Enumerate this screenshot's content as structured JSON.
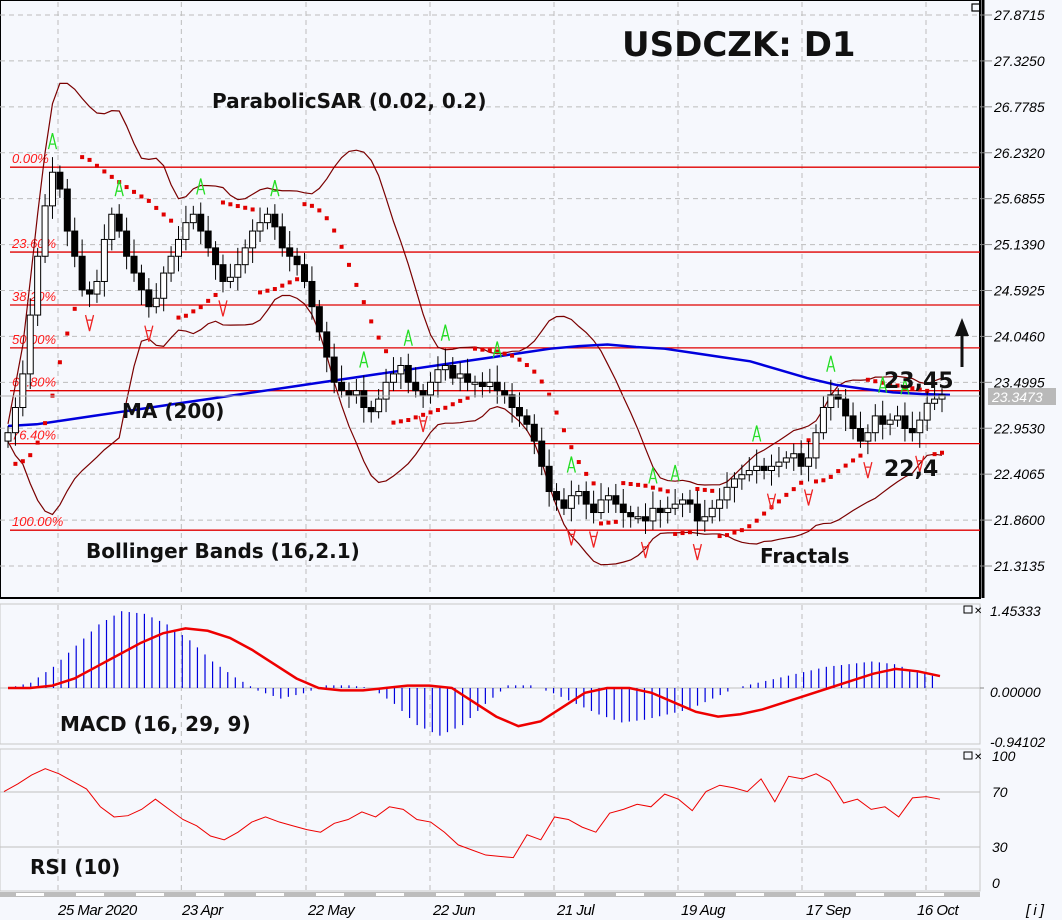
{
  "title": "USDCZK: D1",
  "chart_data": {
    "type": "candlestick",
    "title": "USDCZK: D1",
    "symbol": "USDCZK",
    "timeframe": "D1",
    "price_axis": {
      "ticks": [
        "27.8715",
        "27.3250",
        "26.7785",
        "26.2320",
        "25.6855",
        "25.1390",
        "24.5925",
        "24.0460",
        "23.4995",
        "22.9530",
        "22.4065",
        "21.8600",
        "21.3135"
      ],
      "range": [
        21.3135,
        27.8715
      ],
      "current_price": "23.3473"
    },
    "x_axis": {
      "ticks": [
        "25 Mar 2020",
        "23 Apr",
        "22 May",
        "22 Jun",
        "21 Jul",
        "19 Aug",
        "17 Sep",
        "16 Oct"
      ]
    },
    "fibonacci_levels": [
      {
        "label": "0.00%",
        "price": 26.06
      },
      {
        "label": "23.60%",
        "price": 25.05
      },
      {
        "label": "38.20%",
        "price": 24.42
      },
      {
        "label": "50.00%",
        "price": 23.91
      },
      {
        "label": "61.80%",
        "price": 23.4
      },
      {
        "label": "76.40%",
        "price": 22.77
      },
      {
        "label": "100.00%",
        "price": 21.74
      }
    ],
    "annotations": {
      "parabolic_sar": "ParabolicSAR (0.02, 0.2)",
      "ma": "MA (200)",
      "bollinger": "Bollinger Bands (16,2.1)",
      "fractals": "Fractals",
      "resistance": "23,45",
      "support": "22,4",
      "arrow": "up"
    },
    "close_series": [
      22.9,
      23.2,
      23.6,
      24.3,
      25.0,
      25.6,
      26.0,
      25.8,
      25.3,
      25.0,
      24.6,
      24.55,
      24.7,
      25.2,
      25.5,
      25.3,
      25.0,
      24.8,
      24.6,
      24.4,
      24.5,
      24.8,
      25.0,
      25.2,
      25.4,
      25.5,
      25.3,
      25.1,
      24.9,
      24.7,
      24.75,
      24.9,
      25.1,
      25.3,
      25.4,
      25.5,
      25.35,
      25.1,
      25.0,
      24.9,
      24.7,
      24.4,
      24.1,
      23.8,
      23.5,
      23.4,
      23.35,
      23.4,
      23.2,
      23.15,
      23.3,
      23.5,
      23.6,
      23.7,
      23.5,
      23.4,
      23.35,
      23.5,
      23.65,
      23.7,
      23.55,
      23.6,
      23.5,
      23.5,
      23.45,
      23.5,
      23.4,
      23.35,
      23.2,
      23.1,
      23.0,
      22.8,
      22.5,
      22.2,
      22.1,
      22.0,
      22.15,
      22.2,
      22.05,
      21.95,
      22.1,
      22.15,
      22.05,
      21.95,
      21.9,
      21.9,
      21.85,
      22.0,
      21.95,
      22.0,
      22.05,
      22.1,
      22.05,
      21.85,
      21.9,
      22.0,
      22.1,
      22.25,
      22.35,
      22.4,
      22.45,
      22.5,
      22.45,
      22.5,
      22.55,
      22.6,
      22.65,
      22.5,
      22.6,
      22.9,
      23.2,
      23.35,
      23.3,
      23.1,
      22.95,
      22.8,
      22.9,
      23.1,
      23.0,
      23.05,
      23.1,
      22.95,
      22.9,
      23.05,
      23.25,
      23.3,
      23.35
    ],
    "ma200_series": [
      22.98,
      23.0,
      23.05,
      23.1,
      23.15,
      23.2,
      23.25,
      23.3,
      23.35,
      23.4,
      23.45,
      23.5,
      23.55,
      23.6,
      23.65,
      23.7,
      23.75,
      23.8,
      23.85,
      23.9,
      23.93,
      23.95,
      23.92,
      23.9,
      23.85,
      23.8,
      23.75,
      23.65,
      23.55,
      23.47,
      23.42,
      23.38,
      23.36,
      23.35
    ],
    "macd": {
      "label": "MACD (16, 29, 9)",
      "ticks": [
        "1.45333",
        "0.00000",
        "-0.94102"
      ],
      "signal": [
        0,
        0,
        0.05,
        0.2,
        0.45,
        0.7,
        0.95,
        1.15,
        1.25,
        1.2,
        1.05,
        0.8,
        0.5,
        0.2,
        0,
        -0.05,
        -0.05,
        0.0,
        0.05,
        0.05,
        0.0,
        -0.3,
        -0.6,
        -0.8,
        -0.7,
        -0.4,
        -0.1,
        0.0,
        0.0,
        -0.1,
        -0.3,
        -0.5,
        -0.6,
        -0.55,
        -0.45,
        -0.3,
        -0.15,
        0.0,
        0.15,
        0.3,
        0.4,
        0.35,
        0.25
      ],
      "histogram": [
        0,
        0.1,
        0.4,
        0.8,
        1.2,
        1.45,
        1.4,
        1.2,
        0.9,
        0.5,
        0.2,
        -0.05,
        -0.2,
        -0.1,
        0.05,
        0.05,
        0.0,
        -0.3,
        -0.7,
        -0.9,
        -0.7,
        -0.3,
        0.05,
        0.05,
        -0.1,
        -0.3,
        -0.5,
        -0.65,
        -0.6,
        -0.5,
        -0.4,
        -0.2,
        0.0,
        0.1,
        0.2,
        0.3,
        0.4,
        0.45,
        0.5,
        0.45,
        0.3,
        0.2
      ]
    },
    "rsi": {
      "label": "RSI (10)",
      "ticks": [
        "100",
        "70",
        "30",
        "0"
      ],
      "values": [
        72,
        78,
        85,
        90,
        86,
        80,
        74,
        60,
        52,
        53,
        58,
        66,
        58,
        50,
        45,
        37,
        34,
        40,
        48,
        52,
        48,
        45,
        42,
        40,
        47,
        50,
        56,
        52,
        60,
        58,
        50,
        48,
        40,
        30,
        26,
        22,
        21,
        20,
        38,
        34,
        52,
        50,
        44,
        40,
        55,
        58,
        62,
        60,
        70,
        66,
        57,
        72,
        77,
        75,
        72,
        82,
        64,
        84,
        82,
        86,
        80,
        63,
        66,
        58,
        60,
        52,
        67,
        68,
        66
      ]
    }
  },
  "window_controls": {
    "info_button": "[ i ]"
  }
}
